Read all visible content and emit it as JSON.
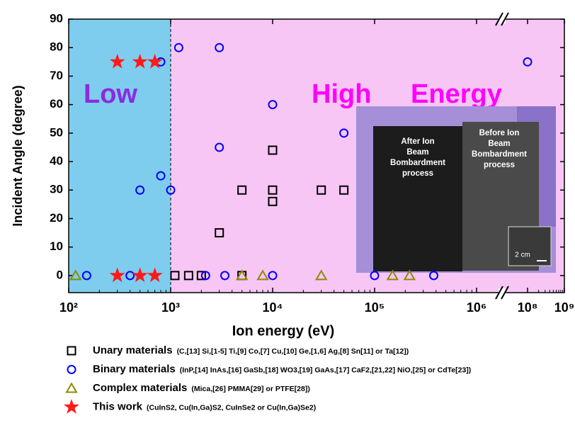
{
  "chart_data": {
    "type": "scatter",
    "xlabel": "Ion energy (eV)",
    "ylabel": "Incident Angle (degree)",
    "xscale": "log",
    "xlim": [
      100,
      1000000000
    ],
    "axis_break": [
      1000000,
      100000000
    ],
    "ylim": [
      -6,
      90
    ],
    "yticks": [
      0,
      10,
      20,
      30,
      40,
      50,
      60,
      70,
      80,
      90
    ],
    "xticks": [
      {
        "value": 100,
        "label": "10²"
      },
      {
        "value": 1000,
        "label": "10³"
      },
      {
        "value": 10000,
        "label": "10⁴"
      },
      {
        "value": 100000,
        "label": "10⁵"
      },
      {
        "value": 1000000,
        "label": "10⁶"
      },
      {
        "value": 100000000,
        "label": "10⁸"
      },
      {
        "value": 1000000000,
        "label": "10⁹"
      }
    ],
    "regions": [
      {
        "x": [
          100,
          1000
        ],
        "color": "#7fcdee"
      },
      {
        "x": [
          1000,
          1000000000
        ],
        "color": "#f7c6f5"
      }
    ],
    "divider": 1000,
    "annotations": [
      {
        "text": "Low",
        "color": "#8a2be2"
      },
      {
        "text": "High",
        "color": "#ff00ff"
      },
      {
        "text": "Energy",
        "color": "#ff00ff"
      }
    ],
    "inset": {
      "left": "After Ion Beam Bombardment process",
      "right": "Before Ion Beam Bombardment process",
      "scale": "2 cm"
    },
    "series": [
      {
        "name": "Unary materials",
        "detail": "(C,[13] Si,[1-5] Ti,[9] Co,[7] Cu,[10] Ge,[1,6] Ag,[8] Sn[11] or Ta[12])",
        "marker": "square",
        "color": "#000000",
        "x": [
          1100,
          1500,
          2000,
          5000,
          3000,
          5000,
          10000,
          10000,
          10000,
          30000,
          50000
        ],
        "values": [
          0,
          0,
          0,
          0,
          15,
          30,
          30,
          26,
          44,
          30,
          30
        ]
      },
      {
        "name": "Binary materials",
        "detail": "(InP,[14] InAs,[16] GaSb,[18] WO3,[19] GaAs,[17] CaF2,[21,22] NiO,[25] or CdTe[23])",
        "marker": "circle",
        "color": "#0000ff",
        "x": [
          150,
          400,
          2200,
          3400,
          10000,
          100000,
          380000,
          800,
          1200,
          3000,
          500,
          800,
          1000,
          3000,
          10000,
          50000,
          100000000
        ],
        "values": [
          0,
          0,
          0,
          0,
          0,
          0,
          0,
          75,
          80,
          80,
          30,
          35,
          30,
          45,
          60,
          50,
          75
        ]
      },
      {
        "name": "Complex materials",
        "detail": "(Mica,[26] PMMA[29] or PTFE[28])",
        "marker": "triangle",
        "color": "#8b8b00",
        "x": [
          117,
          5000,
          8000,
          30000,
          150000,
          220000
        ],
        "values": [
          0,
          0,
          0,
          0,
          0,
          0
        ]
      },
      {
        "name": "This work",
        "detail": "(CuInS2, Cu(In,Ga)S2, CuInSe2 or Cu(In,Ga)Se2)",
        "marker": "star",
        "color": "#ff1a1a",
        "x": [
          300,
          500,
          700,
          300,
          500,
          700
        ],
        "values": [
          75,
          75,
          75,
          0,
          0,
          0
        ]
      }
    ]
  }
}
